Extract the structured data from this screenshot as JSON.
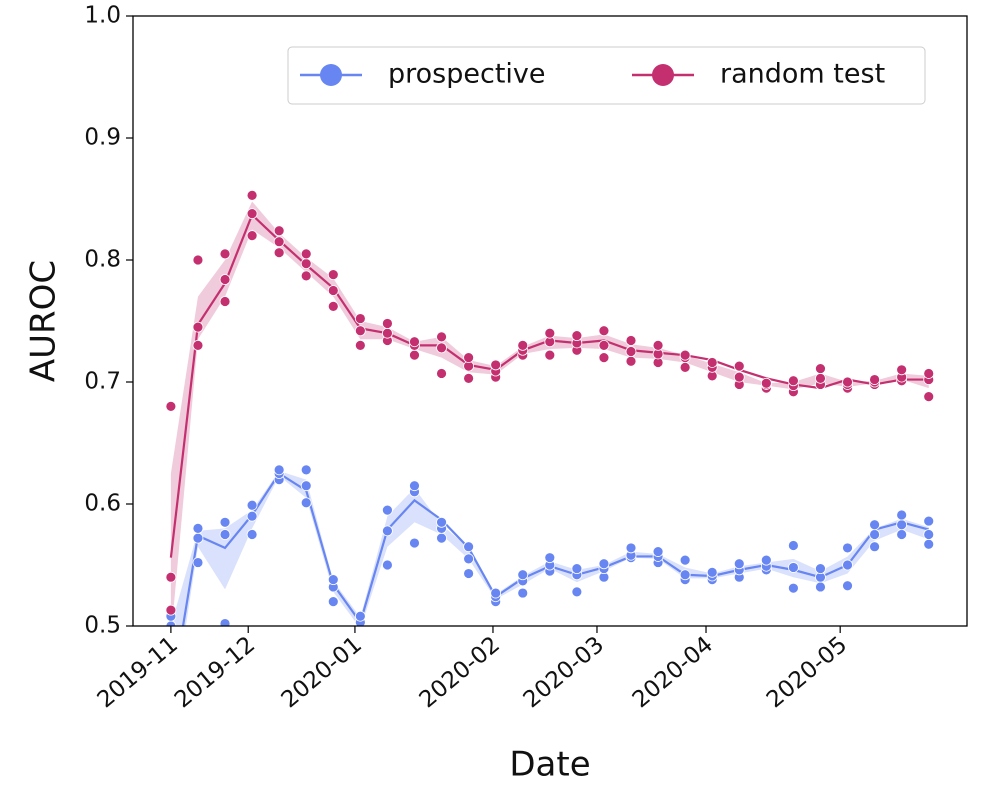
{
  "chart_data": {
    "type": "line",
    "x_label": "Date",
    "y_label": "AUROC",
    "x": [
      0,
      7,
      14,
      21,
      28,
      35,
      42,
      49,
      56,
      63,
      70,
      77,
      84,
      91,
      98,
      105,
      112,
      119,
      126,
      133,
      140,
      147,
      154,
      161,
      168,
      175,
      182,
      189,
      196
    ],
    "xlim": [
      -9.8,
      205.9
    ],
    "xticks": [
      {
        "value": 0,
        "label": "2019-11"
      },
      {
        "value": 20,
        "label": "2019-12"
      },
      {
        "value": 47.6,
        "label": "2020-01"
      },
      {
        "value": 83.3,
        "label": "2020-02"
      },
      {
        "value": 110.2,
        "label": "2020-03"
      },
      {
        "value": 138.4,
        "label": "2020-04"
      },
      {
        "value": 173.1,
        "label": "2020-05"
      }
    ],
    "ylim": [
      0.5,
      1.0
    ],
    "yticks": [
      0.5,
      0.6,
      0.7,
      0.8,
      0.9,
      {
        "value": 1.0,
        "label": "1.0"
      }
    ],
    "legend": "upper right",
    "series": [
      {
        "name": "prospective",
        "color": "#6886f2",
        "values": [
          0.44,
          0.574,
          0.564,
          0.591,
          0.625,
          0.611,
          0.534,
          0.503,
          0.579,
          0.603,
          0.587,
          0.564,
          0.524,
          0.539,
          0.549,
          0.542,
          0.548,
          0.557,
          0.557,
          0.542,
          0.541,
          0.546,
          0.55,
          0.546,
          0.54,
          0.55,
          0.579,
          0.585,
          0.579
        ],
        "lower": [
          0.42,
          0.565,
          0.53,
          0.58,
          0.623,
          0.605,
          0.528,
          0.498,
          0.565,
          0.585,
          0.575,
          0.555,
          0.522,
          0.534,
          0.547,
          0.536,
          0.545,
          0.556,
          0.555,
          0.539,
          0.539,
          0.543,
          0.547,
          0.54,
          0.535,
          0.543,
          0.57,
          0.579,
          0.571
        ],
        "upper": [
          0.5,
          0.578,
          0.58,
          0.595,
          0.627,
          0.62,
          0.537,
          0.507,
          0.59,
          0.613,
          0.583,
          0.564,
          0.526,
          0.541,
          0.553,
          0.546,
          0.55,
          0.561,
          0.559,
          0.548,
          0.543,
          0.549,
          0.552,
          0.555,
          0.545,
          0.557,
          0.58,
          0.588,
          0.581
        ],
        "points": [
          [
            0.48,
            0.5,
            0.508
          ],
          [
            0.552,
            0.572,
            0.58
          ],
          [
            0.502,
            0.575,
            0.585
          ],
          [
            0.575,
            0.59,
            0.599
          ],
          [
            0.62,
            0.625,
            0.628
          ],
          [
            0.601,
            0.615,
            0.628
          ],
          [
            0.52,
            0.532,
            0.538
          ],
          [
            0.49,
            0.503,
            0.508
          ],
          [
            0.55,
            0.578,
            0.595
          ],
          [
            0.568,
            0.61,
            0.615
          ],
          [
            0.572,
            0.58,
            0.585
          ],
          [
            0.543,
            0.555,
            0.565
          ],
          [
            0.52,
            0.524,
            0.527
          ],
          [
            0.527,
            0.537,
            0.542
          ],
          [
            0.545,
            0.55,
            0.556
          ],
          [
            0.528,
            0.542,
            0.547
          ],
          [
            0.54,
            0.547,
            0.551
          ],
          [
            0.556,
            0.558,
            0.564
          ],
          [
            0.552,
            0.557,
            0.561
          ],
          [
            0.538,
            0.542,
            0.554
          ],
          [
            0.538,
            0.541,
            0.544
          ],
          [
            0.54,
            0.546,
            0.551
          ],
          [
            0.546,
            0.549,
            0.554
          ],
          [
            0.531,
            0.548,
            0.566
          ],
          [
            0.532,
            0.54,
            0.547
          ],
          [
            0.533,
            0.55,
            0.564
          ],
          [
            0.565,
            0.575,
            0.583
          ],
          [
            0.575,
            0.583,
            0.591
          ],
          [
            0.567,
            0.575,
            0.586
          ]
        ]
      },
      {
        "name": "random test",
        "color": "#c4306f",
        "values": [
          0.556,
          0.747,
          0.781,
          0.837,
          0.816,
          0.796,
          0.777,
          0.744,
          0.74,
          0.73,
          0.73,
          0.714,
          0.71,
          0.726,
          0.734,
          0.732,
          0.734,
          0.726,
          0.724,
          0.722,
          0.718,
          0.71,
          0.703,
          0.698,
          0.695,
          0.702,
          0.698,
          0.702,
          0.702
        ],
        "lower": [
          0.49,
          0.735,
          0.77,
          0.825,
          0.81,
          0.79,
          0.77,
          0.735,
          0.735,
          0.727,
          0.72,
          0.708,
          0.706,
          0.723,
          0.727,
          0.728,
          0.727,
          0.72,
          0.719,
          0.716,
          0.708,
          0.7,
          0.697,
          0.694,
          0.699,
          0.696,
          0.699,
          0.702,
          0.695
        ],
        "upper": [
          0.625,
          0.77,
          0.8,
          0.848,
          0.822,
          0.802,
          0.785,
          0.75,
          0.745,
          0.733,
          0.737,
          0.718,
          0.713,
          0.729,
          0.738,
          0.736,
          0.739,
          0.731,
          0.728,
          0.722,
          0.715,
          0.708,
          0.699,
          0.7,
          0.707,
          0.7,
          0.701,
          0.707,
          0.705
        ],
        "points": [
          [
            0.513,
            0.54,
            0.68
          ],
          [
            0.73,
            0.745,
            0.8
          ],
          [
            0.766,
            0.784,
            0.805
          ],
          [
            0.82,
            0.838,
            0.853
          ],
          [
            0.806,
            0.815,
            0.824
          ],
          [
            0.787,
            0.797,
            0.805
          ],
          [
            0.762,
            0.775,
            0.788
          ],
          [
            0.73,
            0.742,
            0.752
          ],
          [
            0.734,
            0.74,
            0.748
          ],
          [
            0.722,
            0.73,
            0.733
          ],
          [
            0.707,
            0.728,
            0.737
          ],
          [
            0.703,
            0.713,
            0.72
          ],
          [
            0.704,
            0.709,
            0.714
          ],
          [
            0.722,
            0.726,
            0.73
          ],
          [
            0.722,
            0.733,
            0.74
          ],
          [
            0.726,
            0.732,
            0.738
          ],
          [
            0.72,
            0.73,
            0.742
          ],
          [
            0.717,
            0.725,
            0.734
          ],
          [
            0.716,
            0.723,
            0.73
          ],
          [
            0.712,
            0.72,
            0.722
          ],
          [
            0.705,
            0.712,
            0.716
          ],
          [
            0.698,
            0.704,
            0.713
          ],
          [
            0.695,
            0.698,
            0.699
          ],
          [
            0.692,
            0.697,
            0.701
          ],
          [
            0.698,
            0.703,
            0.711
          ],
          [
            0.695,
            0.698,
            0.7
          ],
          [
            0.698,
            0.7,
            0.702
          ],
          [
            0.701,
            0.704,
            0.71
          ],
          [
            0.688,
            0.702,
            0.707
          ]
        ]
      }
    ]
  }
}
